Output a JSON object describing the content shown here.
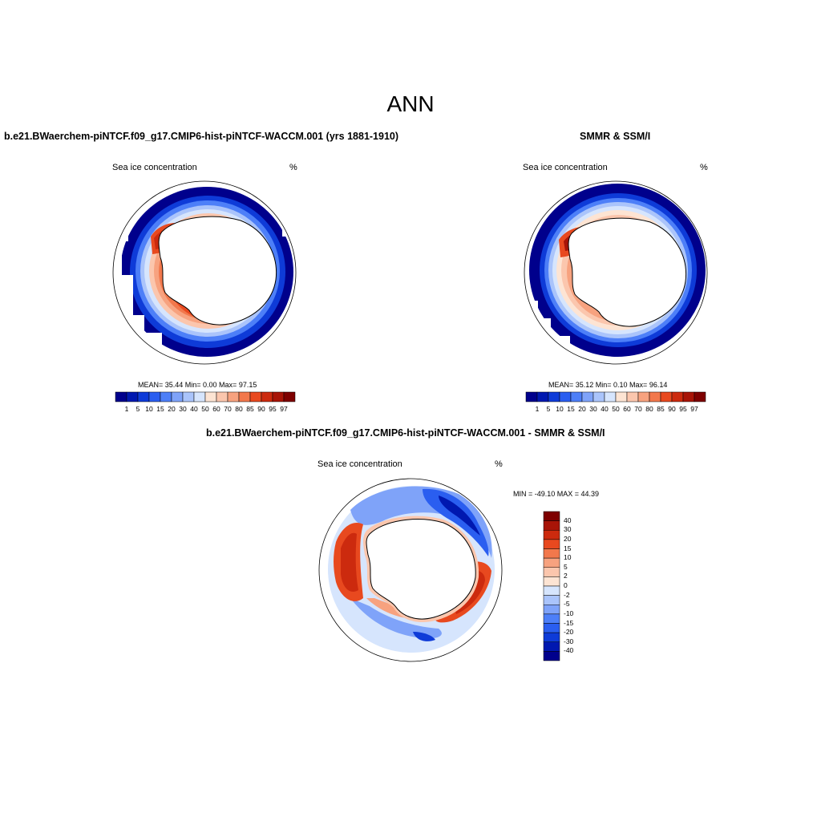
{
  "figure": {
    "title": "ANN"
  },
  "panels": {
    "model": {
      "title": "b.e21.BWaerchem-piNTCF.f09_g17.CMIP6-hist-piNTCF-WACCM.001 (yrs 1881-1910)",
      "var_label": "Sea ice concentration",
      "units": "%",
      "stats": "MEAN=  35.44  Min=   0.00  Max=  97.15"
    },
    "obs": {
      "title": "SMMR & SSM/I",
      "var_label": "Sea ice concentration",
      "units": "%",
      "stats": "MEAN=  35.12  Min=   0.10  Max=  96.14"
    },
    "diff": {
      "title": "b.e21.BWaerchem-piNTCF.f09_g17.CMIP6-hist-piNTCF-WACCM.001 - SMMR & SSM/I",
      "var_label": "Sea ice concentration",
      "units": "%",
      "stats": "MIN = -49.10 MAX =  44.39"
    }
  },
  "colorbars": {
    "concentration": {
      "labels": [
        "1",
        "5",
        "10",
        "15",
        "20",
        "30",
        "40",
        "50",
        "60",
        "70",
        "80",
        "85",
        "90",
        "95",
        "97"
      ],
      "colors": [
        "#00008c",
        "#0018b0",
        "#0e3bd8",
        "#2a5ef0",
        "#4d7ff8",
        "#7fa3f9",
        "#aac4fb",
        "#d6e5fd",
        "#fde4d3",
        "#fbc6ad",
        "#f7a27f",
        "#f2784c",
        "#e8491f",
        "#cc2a0e",
        "#a81407",
        "#7e0000"
      ]
    },
    "difference": {
      "labels": [
        "40",
        "30",
        "20",
        "15",
        "10",
        "5",
        "2",
        "0",
        "-2",
        "-5",
        "-10",
        "-15",
        "-20",
        "-30",
        "-40"
      ],
      "colors": [
        "#7e0000",
        "#a81407",
        "#cc2a0e",
        "#e8491f",
        "#f2784c",
        "#f7a27f",
        "#fbc6ad",
        "#fde4d3",
        "#d6e5fd",
        "#aac4fb",
        "#7fa3f9",
        "#4d7ff8",
        "#2a5ef0",
        "#0e3bd8",
        "#0018b0",
        "#00008c"
      ]
    }
  }
}
